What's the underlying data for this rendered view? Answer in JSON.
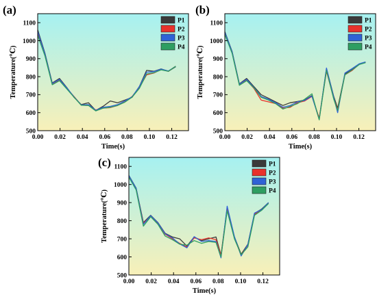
{
  "figure": {
    "colors": {
      "P1": "#3a3a3a",
      "P2": "#e8322c",
      "P3": "#2f63d6",
      "P4": "#2e9e62"
    },
    "background_gradient": [
      "#a6f1f1",
      "#f8f0b8"
    ]
  },
  "chart_data": [
    {
      "type": "line",
      "panel_label": "(a)",
      "xlabel": "Time(s)",
      "ylabel": "Temperature(℃)",
      "xlim": [
        0,
        0.135
      ],
      "ylim": [
        500,
        1150
      ],
      "xticks": [
        0.0,
        0.02,
        0.04,
        0.06,
        0.08,
        0.1,
        0.12
      ],
      "xtick_labels": [
        "0.00",
        "0.02",
        "0.04",
        "0.06",
        "0.08",
        "0.10",
        "0.12"
      ],
      "yticks": [
        500,
        600,
        700,
        800,
        900,
        1000,
        1100
      ],
      "ytick_labels": [
        "500",
        "600",
        "700",
        "800",
        "900",
        "1000",
        "1100"
      ],
      "legend_position": "top-right",
      "series": [
        {
          "name": "P1",
          "x": [
            0,
            0.0065,
            0.013,
            0.0195,
            0.026,
            0.0325,
            0.039,
            0.0455,
            0.052,
            0.0585,
            0.065,
            0.0715,
            0.078,
            0.0845,
            0.091,
            0.0975,
            0.104,
            0.1105,
            0.117,
            0.1235
          ],
          "y": [
            1060,
            930,
            765,
            790,
            740,
            685,
            645,
            655,
            612,
            635,
            665,
            655,
            670,
            685,
            745,
            835,
            830,
            843,
            830,
            855
          ]
        },
        {
          "name": "P2",
          "x": [
            0,
            0.0065,
            0.013,
            0.0195,
            0.026,
            0.0325,
            0.039,
            0.0455,
            0.052,
            0.0585,
            0.065,
            0.0715,
            0.078,
            0.0845,
            0.091,
            0.0975,
            0.104,
            0.1105,
            0.117,
            0.1235
          ],
          "y": [
            1040,
            920,
            760,
            780,
            735,
            690,
            642,
            640,
            615,
            625,
            628,
            640,
            660,
            690,
            740,
            810,
            820,
            840,
            830,
            858
          ]
        },
        {
          "name": "P3",
          "x": [
            0,
            0.0065,
            0.013,
            0.0195,
            0.026,
            0.0325,
            0.039,
            0.0455,
            0.052,
            0.0585,
            0.065,
            0.0715,
            0.078,
            0.0845,
            0.091,
            0.0975,
            0.104,
            0.1105,
            0.117,
            0.1235
          ],
          "y": [
            1050,
            925,
            762,
            785,
            738,
            688,
            643,
            645,
            613,
            630,
            635,
            645,
            665,
            688,
            745,
            825,
            828,
            842,
            832,
            857
          ]
        },
        {
          "name": "P4",
          "x": [
            0,
            0.0065,
            0.013,
            0.0195,
            0.026,
            0.0325,
            0.039,
            0.0455,
            0.052,
            0.0585,
            0.065,
            0.0715,
            0.078,
            0.0845,
            0.091,
            0.0975,
            0.104,
            0.1105,
            0.117,
            0.1235
          ],
          "y": [
            1030,
            915,
            755,
            778,
            732,
            686,
            641,
            640,
            610,
            625,
            630,
            640,
            658,
            686,
            735,
            815,
            822,
            838,
            830,
            858
          ]
        }
      ]
    },
    {
      "type": "line",
      "panel_label": "(b)",
      "xlabel": "Time(s)",
      "ylabel": "Temperature(℃)",
      "xlim": [
        0,
        0.135
      ],
      "ylim": [
        500,
        1150
      ],
      "xticks": [
        0.0,
        0.02,
        0.04,
        0.06,
        0.08,
        0.1,
        0.12
      ],
      "xtick_labels": [
        "0.00",
        "0.02",
        "0.04",
        "0.06",
        "0.08",
        "0.10",
        "0.12"
      ],
      "yticks": [
        500,
        600,
        700,
        800,
        900,
        1000,
        1100
      ],
      "ytick_labels": [
        "500",
        "600",
        "700",
        "800",
        "900",
        "1000",
        "1100"
      ],
      "legend_position": "top-right",
      "series": [
        {
          "name": "P1",
          "x": [
            0,
            0.0065,
            0.013,
            0.0195,
            0.026,
            0.0325,
            0.039,
            0.0455,
            0.052,
            0.0585,
            0.065,
            0.0715,
            0.078,
            0.0845,
            0.091,
            0.0975,
            0.101,
            0.1075,
            0.114,
            0.1205,
            0.126
          ],
          "y": [
            1050,
            940,
            760,
            790,
            745,
            700,
            680,
            660,
            640,
            655,
            662,
            670,
            695,
            565,
            845,
            690,
            625,
            815,
            840,
            870,
            880
          ]
        },
        {
          "name": "P2",
          "x": [
            0,
            0.0065,
            0.013,
            0.0195,
            0.026,
            0.0325,
            0.039,
            0.0455,
            0.052,
            0.0585,
            0.065,
            0.0715,
            0.078,
            0.0845,
            0.091,
            0.0975,
            0.101,
            0.1075,
            0.114,
            0.1205,
            0.126
          ],
          "y": [
            1040,
            935,
            755,
            780,
            735,
            670,
            660,
            650,
            625,
            630,
            655,
            665,
            690,
            570,
            830,
            680,
            615,
            810,
            835,
            870,
            880
          ]
        },
        {
          "name": "P3",
          "x": [
            0,
            0.0065,
            0.013,
            0.0195,
            0.026,
            0.0325,
            0.039,
            0.0455,
            0.052,
            0.0585,
            0.065,
            0.0715,
            0.078,
            0.0845,
            0.091,
            0.0975,
            0.101,
            0.1075,
            0.114,
            0.1205,
            0.126
          ],
          "y": [
            1045,
            938,
            758,
            785,
            740,
            690,
            675,
            655,
            630,
            640,
            660,
            668,
            692,
            562,
            848,
            685,
            600,
            820,
            845,
            872,
            882
          ]
        },
        {
          "name": "P4",
          "x": [
            0,
            0.0065,
            0.013,
            0.0195,
            0.026,
            0.0325,
            0.039,
            0.0455,
            0.052,
            0.0585,
            0.065,
            0.0715,
            0.078,
            0.0845,
            0.091,
            0.0975,
            0.101,
            0.1075,
            0.114,
            0.1205,
            0.126
          ],
          "y": [
            1035,
            930,
            752,
            778,
            738,
            685,
            670,
            650,
            620,
            635,
            650,
            675,
            705,
            560,
            835,
            675,
            612,
            810,
            838,
            868,
            878
          ]
        }
      ]
    },
    {
      "type": "line",
      "panel_label": "(c)",
      "xlabel": "Time(s)",
      "ylabel": "Temperature(℃)",
      "xlim": [
        0,
        0.135
      ],
      "ylim": [
        500,
        1150
      ],
      "xticks": [
        0.0,
        0.02,
        0.04,
        0.06,
        0.08,
        0.1,
        0.12
      ],
      "xtick_labels": [
        "0.00",
        "0.02",
        "0.04",
        "0.06",
        "0.08",
        "0.10",
        "0.12"
      ],
      "yticks": [
        500,
        600,
        700,
        800,
        900,
        1000,
        1100
      ],
      "ytick_labels": [
        "500",
        "600",
        "700",
        "800",
        "900",
        "1000",
        "1100"
      ],
      "legend_position": "top-right",
      "series": [
        {
          "name": "P1",
          "x": [
            0,
            0.0065,
            0.013,
            0.0195,
            0.026,
            0.0325,
            0.039,
            0.0455,
            0.052,
            0.0585,
            0.065,
            0.0715,
            0.078,
            0.0825,
            0.088,
            0.0945,
            0.1005,
            0.1065,
            0.1125,
            0.119,
            0.125
          ],
          "y": [
            1050,
            980,
            790,
            830,
            790,
            730,
            710,
            700,
            660,
            710,
            690,
            700,
            710,
            610,
            870,
            710,
            615,
            670,
            840,
            865,
            900
          ]
        },
        {
          "name": "P2",
          "x": [
            0,
            0.0065,
            0.013,
            0.0195,
            0.026,
            0.0325,
            0.039,
            0.0455,
            0.052,
            0.0585,
            0.065,
            0.0715,
            0.078,
            0.0825,
            0.088,
            0.0945,
            0.1005,
            0.1065,
            0.1125,
            0.119,
            0.125
          ],
          "y": [
            1045,
            975,
            785,
            825,
            785,
            725,
            700,
            675,
            655,
            705,
            695,
            705,
            695,
            605,
            865,
            705,
            610,
            665,
            835,
            860,
            898
          ]
        },
        {
          "name": "P3",
          "x": [
            0,
            0.0065,
            0.013,
            0.0195,
            0.026,
            0.0325,
            0.039,
            0.0455,
            0.052,
            0.0585,
            0.065,
            0.0715,
            0.078,
            0.0825,
            0.088,
            0.0945,
            0.1005,
            0.1065,
            0.1125,
            0.119,
            0.125
          ],
          "y": [
            1048,
            978,
            780,
            828,
            788,
            728,
            705,
            672,
            650,
            712,
            685,
            690,
            685,
            595,
            880,
            712,
            605,
            668,
            842,
            862,
            900
          ]
        },
        {
          "name": "P4",
          "x": [
            0,
            0.0065,
            0.013,
            0.0195,
            0.026,
            0.0325,
            0.039,
            0.0455,
            0.052,
            0.0585,
            0.065,
            0.0715,
            0.078,
            0.0825,
            0.088,
            0.0945,
            0.1005,
            0.1065,
            0.1125,
            0.119,
            0.125
          ],
          "y": [
            1040,
            970,
            770,
            822,
            780,
            715,
            695,
            670,
            665,
            690,
            675,
            685,
            680,
            600,
            855,
            700,
            612,
            655,
            830,
            858,
            895
          ]
        }
      ]
    }
  ]
}
